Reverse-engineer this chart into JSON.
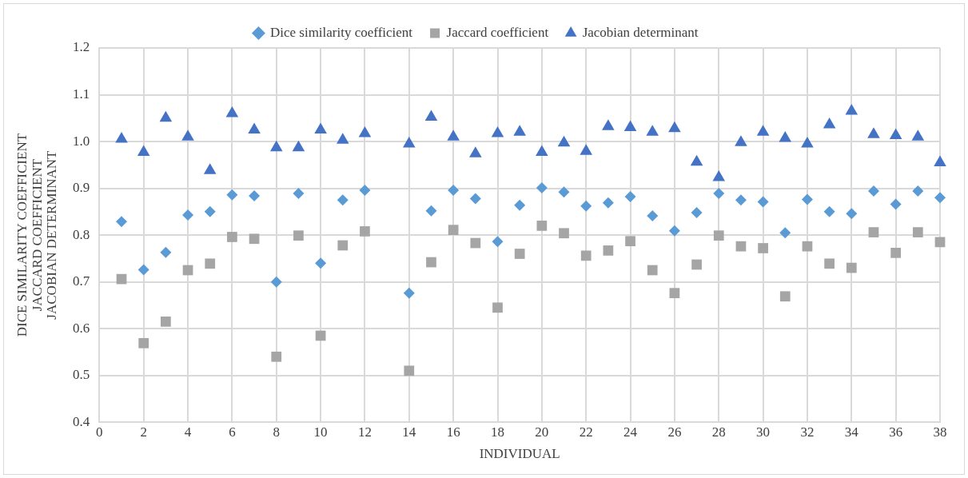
{
  "chart_data": {
    "type": "scatter",
    "xlabel": "INDIVIDUAL",
    "ylabel": "DICE SIMILARITY COEFFICIENT\nJACCARD COEFFICIENT\nJACOBIAN DETERMINANT",
    "x": [
      1,
      2,
      3,
      4,
      5,
      6,
      7,
      8,
      9,
      10,
      11,
      12,
      14,
      15,
      16,
      17,
      18,
      19,
      20,
      21,
      22,
      23,
      24,
      25,
      26,
      27,
      28,
      29,
      30,
      31,
      32,
      33,
      34,
      35,
      36,
      37,
      38
    ],
    "series": [
      {
        "name": "Dice similarity coefficient",
        "color": "#5b9bd5",
        "marker": "diamond",
        "values": [
          0.829,
          0.726,
          0.763,
          0.843,
          0.85,
          0.886,
          0.884,
          0.7,
          0.889,
          0.74,
          0.875,
          0.896,
          0.676,
          0.852,
          0.896,
          0.878,
          0.786,
          0.864,
          0.901,
          0.892,
          0.862,
          0.869,
          0.882,
          0.841,
          0.809,
          0.848,
          0.889,
          0.875,
          0.871,
          0.805,
          0.876,
          0.85,
          0.846,
          0.894,
          0.866,
          0.894,
          0.88
        ]
      },
      {
        "name": "Jaccard coefficient",
        "color": "#a5a5a5",
        "marker": "square",
        "values": [
          0.706,
          0.569,
          0.615,
          0.725,
          0.739,
          0.796,
          0.792,
          0.54,
          0.799,
          0.585,
          0.778,
          0.808,
          0.51,
          0.742,
          0.811,
          0.783,
          0.645,
          0.76,
          0.82,
          0.804,
          0.756,
          0.767,
          0.787,
          0.725,
          0.676,
          0.737,
          0.799,
          0.776,
          0.772,
          0.669,
          0.776,
          0.739,
          0.73,
          0.806,
          0.762,
          0.806,
          0.785
        ]
      },
      {
        "name": "Jacobian determinant",
        "color": "#4472c4",
        "marker": "triangle",
        "values": [
          1.005,
          0.977,
          1.05,
          1.01,
          0.938,
          1.06,
          1.025,
          0.987,
          0.987,
          1.025,
          1.003,
          1.017,
          0.995,
          1.052,
          1.01,
          0.974,
          1.017,
          1.02,
          0.977,
          0.997,
          0.979,
          1.032,
          1.03,
          1.02,
          1.028,
          0.956,
          0.923,
          0.998,
          1.02,
          1.007,
          0.995,
          1.036,
          1.065,
          1.015,
          1.013,
          1.01,
          0.955
        ]
      }
    ],
    "xlim": [
      0,
      38
    ],
    "xticks": [
      0,
      2,
      4,
      6,
      8,
      10,
      12,
      14,
      16,
      18,
      20,
      22,
      24,
      26,
      28,
      30,
      32,
      34,
      36,
      38
    ],
    "ylim": [
      0.4,
      1.2
    ],
    "yticks": [
      0.4,
      0.5,
      0.6,
      0.7,
      0.8,
      0.9,
      {
        "value": 1,
        "label": "1.0"
      },
      1.1,
      1.2
    ],
    "grid": true,
    "legend": "top"
  }
}
